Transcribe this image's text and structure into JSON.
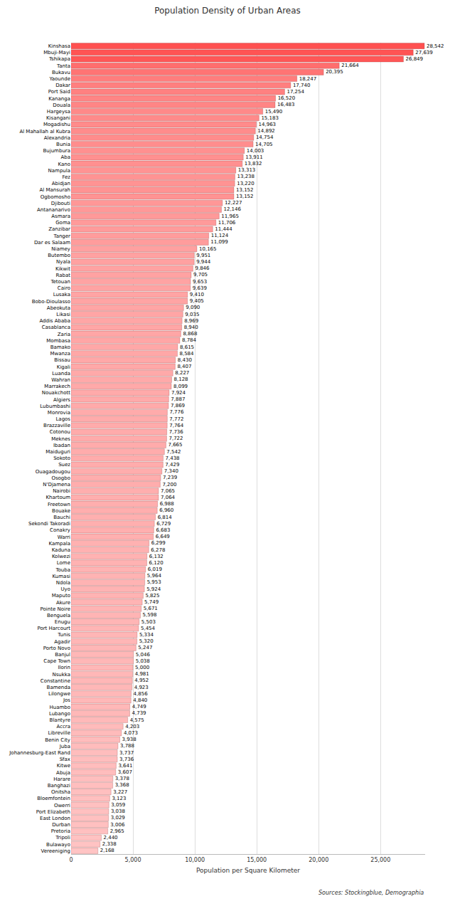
{
  "chart_data": {
    "type": "bar",
    "orientation": "horizontal",
    "title": "Population Density of Urban Areas",
    "x_label": "Population per Square Kilometer",
    "source": "Sources: Stockingblue, Demographia",
    "categories": [
      "Kinshasa",
      "Mbuji-Mayi",
      "Tshikapa",
      "Tanta",
      "Bukavu",
      "Yaounde",
      "Dakar",
      "Port Said",
      "Kananga",
      "Douala",
      "Hargeysa",
      "Kisangani",
      "Mogadishu",
      "Al Mahallah al Kubra",
      "Alexandria",
      "Bunia",
      "Bujumbura",
      "Aba",
      "Kano",
      "Nampula",
      "Fez",
      "Abidjan",
      "Al Mansurah",
      "Ogbomosho",
      "Djibouti",
      "Antananarivo",
      "Asmara",
      "Goma",
      "Zanzibar",
      "Tanger",
      "Dar es Salaam",
      "Niamey",
      "Butembo",
      "Nyala",
      "Kikwit",
      "Rabat",
      "Tetouan",
      "Cairo",
      "Lusaka",
      "Bobo-Dioulasso",
      "Abeokuta",
      "Likasi",
      "Addis Ababa",
      "Casablanca",
      "Zaria",
      "Mombasa",
      "Bamako",
      "Mwanza",
      "Bissau",
      "Kigali",
      "Luanda",
      "Wahran",
      "Marrakech",
      "Nouakchott",
      "Algiers",
      "Lubumbashi",
      "Monrovia",
      "Lagos",
      "Brazzaville",
      "Cotonou",
      "Meknes",
      "Ibadan",
      "Maiduguri",
      "Sokoto",
      "Suez",
      "Ouagadougou",
      "Osogbo",
      "N'Djamena",
      "Nairobi",
      "Khartoum",
      "Freetown",
      "Bouake",
      "Bauchi",
      "Sekondi Takoradi",
      "Conakry",
      "Warri",
      "Kampala",
      "Kaduna",
      "Kolwezi",
      "Lome",
      "Touba",
      "Kumasi",
      "Ndola",
      "Uyo",
      "Maputo",
      "Akure",
      "Pointe Noire",
      "Benguela",
      "Enugu",
      "Port Harcourt",
      "Tunis",
      "Agadir",
      "Porto Novo",
      "Banjul",
      "Cape Town",
      "Ilorin",
      "Nsukka",
      "Constantine",
      "Bamenda",
      "Lilongwe",
      "Jos",
      "Huambo",
      "Lubango",
      "Blantyre",
      "Accra",
      "Libreville",
      "Benin City",
      "Juba",
      "Johannesburg-East Rand",
      "Sfax",
      "Kitwe",
      "Abuja",
      "Harare",
      "Banghazi",
      "Onitsha",
      "Bloemfontein",
      "Owerri",
      "Port Elizabeth",
      "East London",
      "Durban",
      "Pretoria",
      "Tripoli",
      "Bulawayo",
      "Vereeniging"
    ],
    "values": [
      28542,
      27639,
      26849,
      21664,
      20395,
      18247,
      17740,
      17254,
      16520,
      16483,
      15490,
      15183,
      14963,
      14892,
      14754,
      14705,
      14003,
      13911,
      13832,
      13313,
      13238,
      13220,
      13152,
      13152,
      12227,
      12146,
      11965,
      11706,
      11444,
      11124,
      11099,
      10165,
      9951,
      9944,
      9846,
      9705,
      9653,
      9639,
      9410,
      9405,
      9090,
      9035,
      8969,
      8940,
      8868,
      8784,
      8615,
      8584,
      8430,
      8407,
      8227,
      8128,
      8099,
      7924,
      7887,
      7869,
      7776,
      7772,
      7764,
      7736,
      7722,
      7665,
      7542,
      7438,
      7429,
      7340,
      7239,
      7200,
      7065,
      7064,
      6988,
      6960,
      6814,
      6729,
      6683,
      6649,
      6299,
      6278,
      6132,
      6120,
      6019,
      5964,
      5953,
      5924,
      5825,
      5749,
      5671,
      5598,
      5503,
      5454,
      5334,
      5320,
      5247,
      5046,
      5038,
      5000,
      4981,
      4952,
      4923,
      4856,
      4840,
      4749,
      4739,
      4575,
      4203,
      4073,
      3938,
      3788,
      3737,
      3736,
      3641,
      3607,
      3378,
      3368,
      3227,
      3123,
      3059,
      3038,
      3029,
      3006,
      2965,
      2440,
      2338,
      2168
    ],
    "value_labels": [
      "28,542",
      "27,639",
      "26,849",
      "21,664",
      "20,395",
      "18,247",
      "17,740",
      "17,254",
      "16,520",
      "16,483",
      "15,490",
      "15,183",
      "14,963",
      "14,892",
      "14,754",
      "14,705",
      "14,003",
      "13,911",
      "13,832",
      "13,313",
      "13,238",
      "13,220",
      "13,152",
      "13,152",
      "12,227",
      "12,146",
      "11,965",
      "11,706",
      "11,444",
      "11,124",
      "11,099",
      "10,165",
      "9,951",
      "9,944",
      "9,846",
      "9,705",
      "9,653",
      "9,639",
      "9,410",
      "9,405",
      "9,090",
      "9,035",
      "8,969",
      "8,940",
      "8,868",
      "8,784",
      "8,615",
      "8,584",
      "8,430",
      "8,407",
      "8,227",
      "8,128",
      "8,099",
      "7,924",
      "7,887",
      "7,869",
      "7,776",
      "7,772",
      "7,764",
      "7,736",
      "7,722",
      "7,665",
      "7,542",
      "7,438",
      "7,429",
      "7,340",
      "7,239",
      "7,200",
      "7,065",
      "7,064",
      "6,988",
      "6,960",
      "6,814",
      "6,729",
      "6,683",
      "6,649",
      "6,299",
      "6,278",
      "6,132",
      "6,120",
      "6,019",
      "5,964",
      "5,953",
      "5,924",
      "5,825",
      "5,749",
      "5,671",
      "5,598",
      "5,503",
      "5,454",
      "5,334",
      "5,320",
      "5,247",
      "5,046",
      "5,038",
      "5,000",
      "4,981",
      "4,952",
      "4,923",
      "4,856",
      "4,840",
      "4,749",
      "4,739",
      "4,575",
      "4,203",
      "4,073",
      "3,938",
      "3,788",
      "3,737",
      "3,736",
      "3,641",
      "3,607",
      "3,378",
      "3,368",
      "3,227",
      "3,123",
      "3,059",
      "3,038",
      "3,029",
      "3,006",
      "2,965",
      "2,440",
      "2,338",
      "2,168"
    ],
    "colors": [
      "#ff5050",
      "#ff5454",
      "#ff5757",
      "#ff6e6e",
      "#ff7474",
      "#ff7d7d",
      "#ff7f7f",
      "#ff8181",
      "#ff8585",
      "#ff8585",
      "#ff8989",
      "#ff8a8a",
      "#ff8b8b",
      "#ff8c8c",
      "#ff8c8c",
      "#ff8d8d",
      "#ff9090",
      "#ff9090",
      "#ff9090",
      "#ff9393",
      "#ff9393",
      "#ff9393",
      "#ff9393",
      "#ff9393",
      "#ff9797",
      "#ff9898",
      "#ff9999",
      "#ff9a9a",
      "#ff9b9b",
      "#ff9c9c",
      "#ff9c9c",
      "#ffa0a0",
      "#ffa1a1",
      "#ffa1a1",
      "#ffa2a2",
      "#ffa2a2",
      "#ffa3a3",
      "#ffa3a3",
      "#ffa4a4",
      "#ffa4a4",
      "#ffa5a5",
      "#ffa5a5",
      "#ffa6a6",
      "#ffa6a6",
      "#ffa6a6",
      "#ffa6a6",
      "#ffa7a7",
      "#ffa7a7",
      "#ffa8a8",
      "#ffa8a8",
      "#ffa9a9",
      "#ffa9a9",
      "#ffa9a9",
      "#ffaaaa",
      "#ffaaaa",
      "#ffaaaa",
      "#ffabab",
      "#ffabab",
      "#ffabab",
      "#ffabab",
      "#ffabab",
      "#ffabab",
      "#ffacac",
      "#ffacac",
      "#ffacac",
      "#ffadad",
      "#ffadad",
      "#ffadad",
      "#ffaeae",
      "#ffaeae",
      "#ffaeae",
      "#ffaeae",
      "#ffafaf",
      "#ffafaf",
      "#ffafaf",
      "#ffb0b0",
      "#ffb1b1",
      "#ffb1b1",
      "#ffb2b2",
      "#ffb2b2",
      "#ffb3b3",
      "#ffb3b3",
      "#ffb3b3",
      "#ffb3b3",
      "#ffb3b3",
      "#ffb4b4",
      "#ffb4b4",
      "#ffb4b4",
      "#ffb5b5",
      "#ffb5b5",
      "#ffb6b6",
      "#ffb6b6",
      "#ffb6b6",
      "#ffb7b7",
      "#ffb7b7",
      "#ffb7b7",
      "#ffb7b7",
      "#ffb7b7",
      "#ffb7b7",
      "#ffb8b8",
      "#ffb8b8",
      "#ffb8b8",
      "#ffb8b8",
      "#ffb9b9",
      "#ffbbbb",
      "#ffbbbb",
      "#ffbcbc",
      "#ffbcbc",
      "#ffbdbd",
      "#ffbdbd",
      "#ffbdbd",
      "#ffbdbd",
      "#ffbebe",
      "#ffbebe",
      "#ffbfbf",
      "#ffbfbf",
      "#ffc0c0",
      "#ffc0c0",
      "#ffc0c0",
      "#ffc0c0",
      "#ffc0c0",
      "#ffc2c2",
      "#ffc3c3",
      "#ffc4c4"
    ],
    "xlim": [
      0,
      28600
    ],
    "xticks": [
      0,
      {
        "value": 5000,
        "label": "5,000"
      },
      {
        "value": 10000,
        "label": "10,000"
      },
      {
        "value": 15000,
        "label": "15,000"
      },
      {
        "value": 20000,
        "label": "20,000"
      },
      {
        "value": 25000,
        "label": "25,000"
      }
    ],
    "grid": true,
    "data_labels": true
  }
}
